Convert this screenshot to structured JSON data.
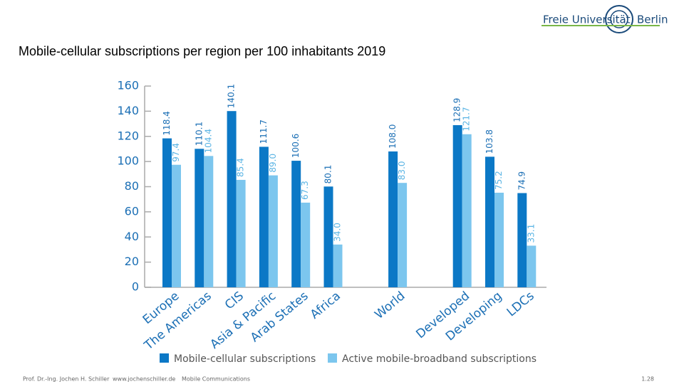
{
  "header": {
    "logo_left": "Freie Universität",
    "logo_right": "Berlin"
  },
  "chart_data": {
    "type": "bar",
    "title": "Mobile-cellular subscriptions per region per 100 inhabitants 2019",
    "categories": [
      "Europe",
      "The Americas",
      "CIS",
      "Asia & Pacific",
      "Arab States",
      "Africa",
      null,
      "World",
      null,
      "Developed",
      "Developing",
      "LDCs"
    ],
    "series": [
      {
        "name": "Mobile-cellular subscriptions",
        "color": "#0b78c6",
        "values": [
          118.4,
          110.1,
          140.1,
          111.7,
          100.6,
          80.1,
          null,
          108.0,
          null,
          128.9,
          103.8,
          74.9
        ],
        "value_labels": [
          "118.4",
          "110.1",
          "140.1",
          "111.7",
          "100.6",
          "80.1",
          null,
          "108.0",
          null,
          "128.9",
          "103.8",
          "74.9"
        ]
      },
      {
        "name": "Active mobile-broadband subscriptions",
        "color": "#7cc6ee",
        "values": [
          97.4,
          104.4,
          85.4,
          89.0,
          67.3,
          34.0,
          null,
          83.0,
          null,
          121.7,
          75.2,
          33.1
        ],
        "value_labels": [
          "97.4",
          "104.4",
          "85.4",
          "89.0",
          "67.3",
          "34.0",
          null,
          "83.0",
          null,
          "121.7",
          "75.2",
          "33.1"
        ]
      }
    ],
    "ylim": [
      0,
      160
    ],
    "yticks": [
      0,
      20,
      40,
      60,
      80,
      100,
      120,
      140,
      160
    ],
    "grid": false,
    "legend": "bottom"
  },
  "footer": {
    "author": "Prof. Dr.-Ing. Jochen H. Schiller",
    "url": "www.jochenschiller.de",
    "course": "Mobile Communications",
    "page": "1.28"
  }
}
